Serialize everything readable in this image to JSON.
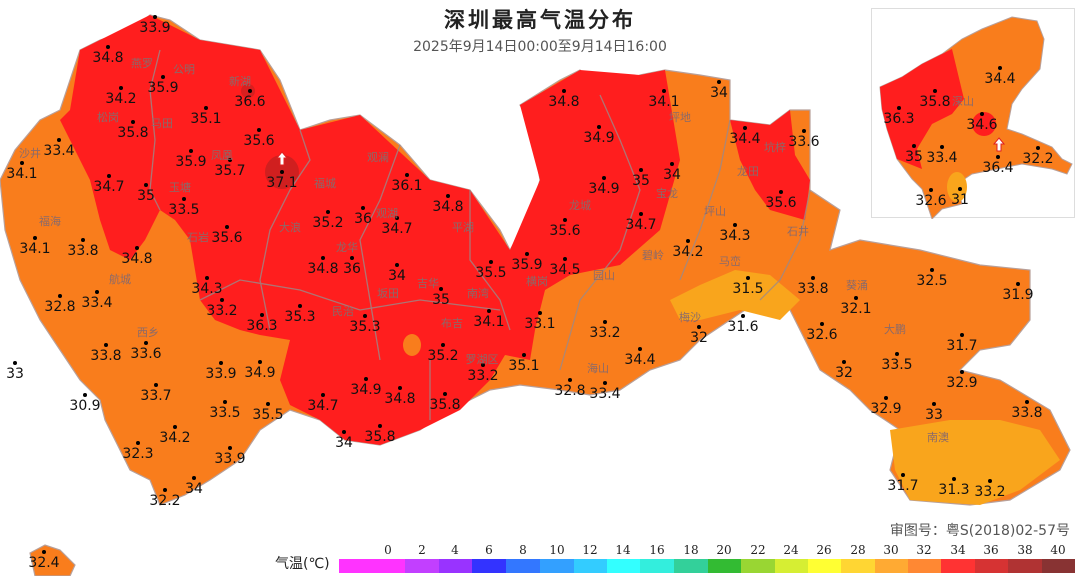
{
  "title": "深圳最高气温分布",
  "subtitle": "2025年9月14日00:00至9月14日16:00",
  "approval_number": "审图号：粤S(2018)02-57号",
  "legend": {
    "title": "气温(℃)",
    "ticks": [
      "0",
      "2",
      "4",
      "6",
      "8",
      "10",
      "12",
      "14",
      "16",
      "18",
      "20",
      "22",
      "24",
      "26",
      "28",
      "30",
      "32",
      "34",
      "36",
      "38",
      "40"
    ],
    "colors": [
      "#ff33ff",
      "#c23fff",
      "#9933ff",
      "#3333ff",
      "#3377ff",
      "#33a0ff",
      "#33ccff",
      "#33ffff",
      "#33eedd",
      "#33d09a",
      "#33bb33",
      "#99d633",
      "#d6ee33",
      "#ffff33",
      "#ffd633",
      "#ffaa33",
      "#ff8833",
      "#ff3333",
      "#d63333",
      "#b03333",
      "#883333"
    ]
  },
  "colors": {
    "above_35": "#ff1e1e",
    "32_to_35": "#f97d1c",
    "30_to_32": "#f9a51c",
    "above_37": "#c82020"
  },
  "stations": [
    "33.9",
    "34.8",
    "34.2",
    "35.9",
    "35.1",
    "36.6",
    "35.6",
    "35.8",
    "35.9",
    "35.7",
    "37.1",
    "33.4",
    "34.1",
    "34.7",
    "35",
    "33.5",
    "35.6",
    "34.1",
    "33.8",
    "34.8",
    "32.8",
    "33.4",
    "34.3",
    "33",
    "30.9",
    "33.8",
    "33.6",
    "33.7",
    "33.2",
    "36.3",
    "35.3",
    "33.9",
    "34.9",
    "33.5",
    "35.5",
    "34.2",
    "32.3",
    "33.9",
    "34",
    "32.2",
    "32.4",
    "36.1",
    "35.2",
    "36",
    "34.7",
    "34.8",
    "34.8",
    "36",
    "34",
    "35.5",
    "35",
    "35.9",
    "34.5",
    "35.3",
    "34.1",
    "33.1",
    "35.2",
    "35.1",
    "33.2",
    "34.9",
    "34.9",
    "35.6",
    "34.8",
    "34.1",
    "34",
    "35",
    "34",
    "34.7",
    "34.2",
    "34.3",
    "34.4",
    "33.6",
    "35.6",
    "31.5",
    "33.8",
    "34.9",
    "34.8",
    "35.8",
    "34.7",
    "34",
    "35.8",
    "33.2",
    "32.8",
    "33.4",
    "34.4",
    "32",
    "31.6",
    "32.6",
    "32.1",
    "32.5",
    "31.9",
    "31.7",
    "32",
    "33.5",
    "32.9",
    "33",
    "32.9",
    "33.8",
    "31.7",
    "31.3",
    "33.2"
  ],
  "inset_stations": [
    "34.4",
    "35.8",
    "36.3",
    "34.6",
    "35",
    "33.4",
    "36.4",
    "32.2",
    "32.6",
    "31"
  ],
  "districts": [
    "燕罗",
    "公明",
    "新湖",
    "马田",
    "松岗",
    "沙井",
    "福海",
    "玉塘",
    "凤凰",
    "石岩",
    "大浪",
    "观澜",
    "福城",
    "观湖",
    "龙华",
    "坂田",
    "吉华",
    "南湾",
    "民治",
    "布吉",
    "罗湖区",
    "平湖",
    "龙城",
    "园山",
    "横岗",
    "坪地",
    "宝龙",
    "龙田",
    "坑梓",
    "坪山",
    "碧岭",
    "马峦",
    "石井",
    "梅沙",
    "葵涌",
    "大鹏",
    "南澳",
    "海山",
    "航城",
    "西乡"
  ],
  "inset_district": "深山"
}
